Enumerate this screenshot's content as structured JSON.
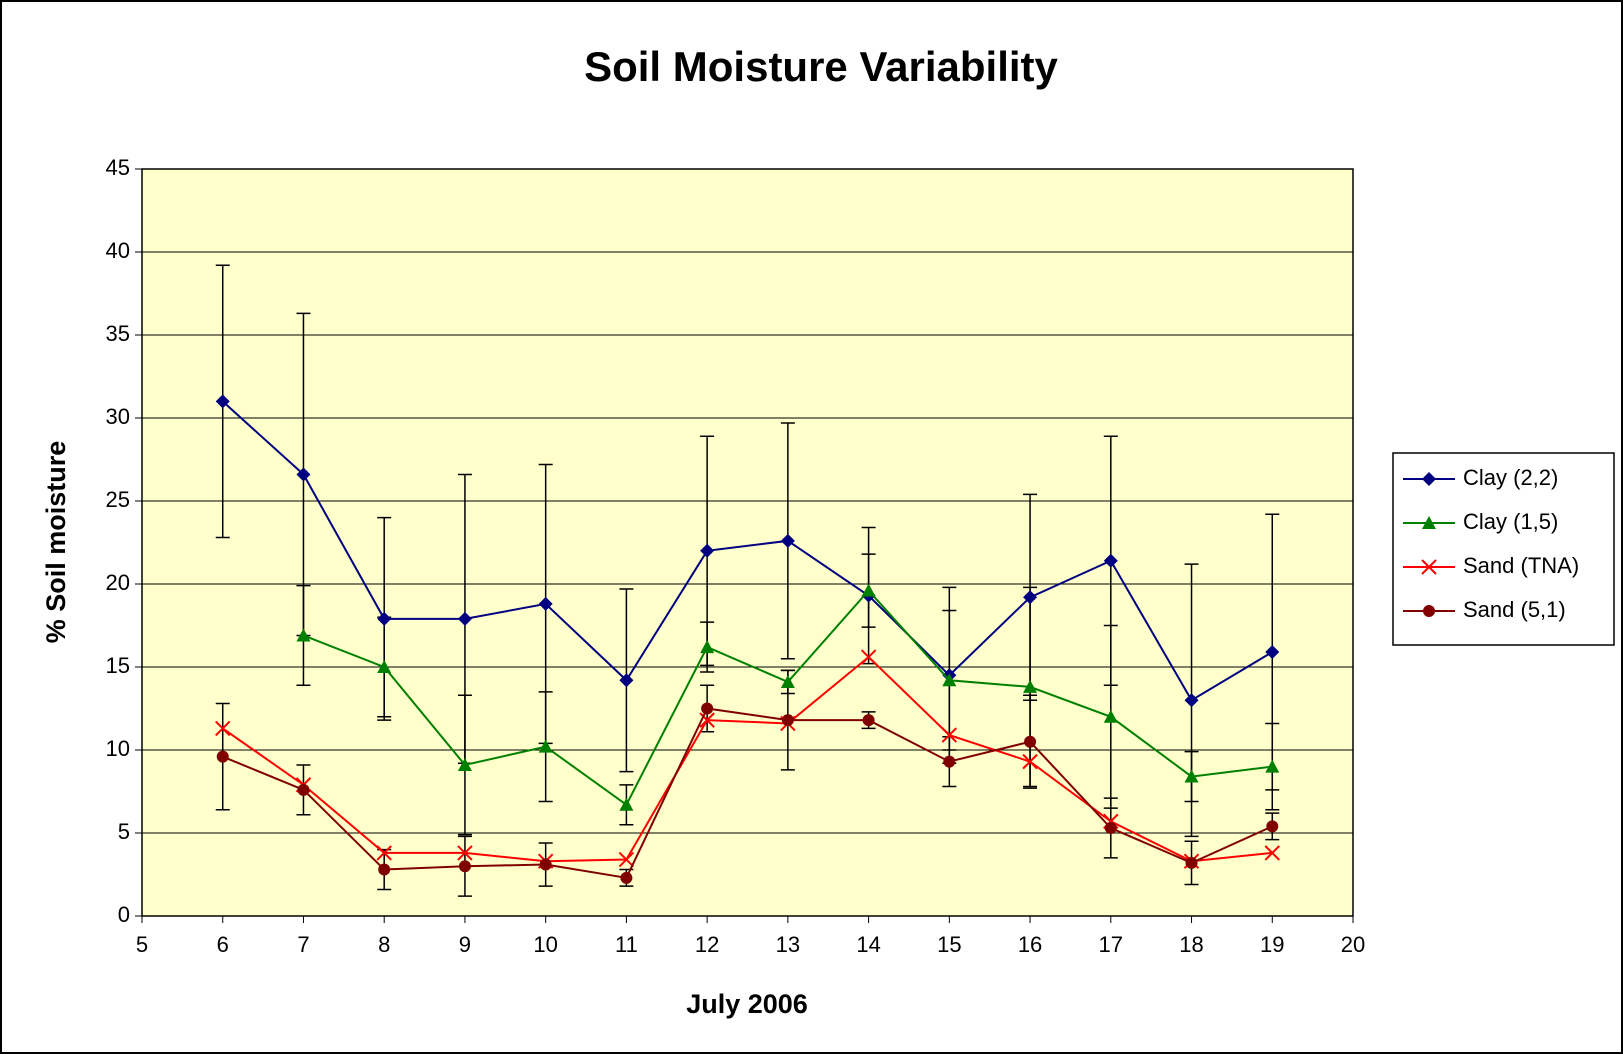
{
  "chart_data": {
    "type": "line",
    "title": "Soil Moisture Variability",
    "x_label": "July 2006",
    "y_label": "% Soil moisture",
    "x": [
      6,
      7,
      8,
      9,
      10,
      11,
      12,
      13,
      14,
      15,
      16,
      17,
      18,
      19
    ],
    "series": [
      {
        "name": "Clay (2,2)",
        "color": "#000080",
        "marker": "diamond",
        "values": [
          31,
          26.6,
          17.9,
          17.9,
          18.8,
          14.2,
          22,
          22.6,
          19.3,
          14.5,
          19.2,
          21.4,
          13,
          15.9
        ],
        "errors": [
          8.2,
          9.7,
          6.1,
          8.7,
          8.4,
          5.5,
          6.9,
          7.1,
          4.1,
          5.3,
          6.2,
          7.5,
          8.2,
          8.3
        ]
      },
      {
        "name": "Clay (1,5)",
        "color": "#008000",
        "marker": "triangle",
        "values": [
          null,
          16.9,
          15,
          9.1,
          10.2,
          6.7,
          16.2,
          14.1,
          19.6,
          14.2,
          13.8,
          12,
          8.4,
          9
        ],
        "errors": [
          null,
          3,
          3,
          4.2,
          3.3,
          1.2,
          1.5,
          0.7,
          2.2,
          4.2,
          6,
          5.5,
          1.5,
          2.6
        ]
      },
      {
        "name": "Sand (TNA)",
        "color": "#ff0000",
        "marker": "x",
        "values": [
          11.3,
          7.9,
          3.8,
          3.8,
          3.3,
          3.4,
          11.8,
          11.6,
          15.6,
          10.9,
          9.3,
          5.7,
          3.3,
          3.8
        ]
      },
      {
        "name": "Sand (5,1)",
        "color": "#800000",
        "marker": "circle",
        "values": [
          9.6,
          7.6,
          2.8,
          3,
          3.1,
          2.3,
          12.5,
          11.8,
          11.8,
          9.3,
          10.5,
          5.3,
          3.2,
          5.4
        ],
        "errors": [
          3.2,
          1.5,
          1.2,
          1.8,
          1.3,
          0.5,
          1.4,
          3,
          0.5,
          1.5,
          2.8,
          1.8,
          1.3,
          0.8
        ]
      }
    ],
    "xlim": [
      5,
      20
    ],
    "xticks": [
      5,
      6,
      7,
      8,
      9,
      10,
      11,
      12,
      13,
      14,
      15,
      16,
      17,
      18,
      19,
      20
    ],
    "ylim": [
      0,
      45
    ],
    "yticks": [
      0,
      5,
      10,
      15,
      20,
      25,
      30,
      35,
      40,
      45
    ],
    "grid": true,
    "legend": "right",
    "plot_background": "#ffffcc"
  }
}
